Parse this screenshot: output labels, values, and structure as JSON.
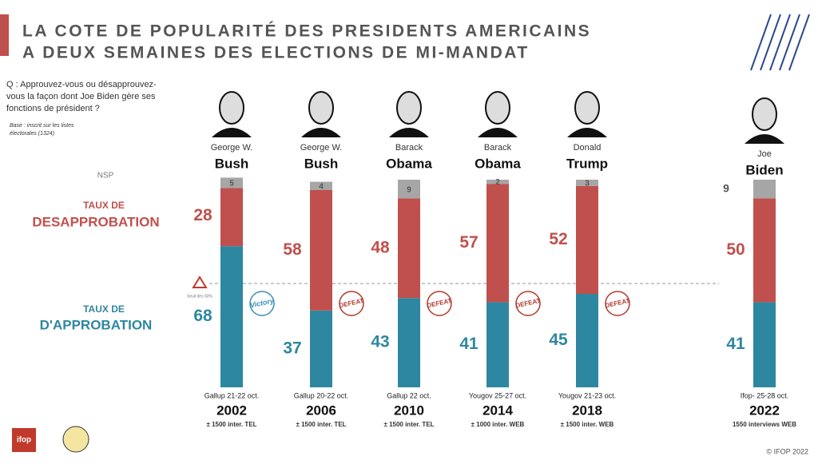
{
  "chart_data": {
    "type": "stacked-bar",
    "title": [
      "LA COTE DE POPULARITÉ DES PRESIDENTS AMERICAINS",
      "A DEUX SEMAINES DES ELECTIONS DE MI-MANDAT"
    ],
    "question": [
      "Q : Approuvez-vous ou désapprouvez-",
      "vous la façon dont Joe Biden gère ses",
      "fonctions de président ?"
    ],
    "base": [
      "Base : inscrit sur les listes",
      "électorales (1324)"
    ],
    "legend_prefix": "TAUX DE",
    "categories": [
      "2002",
      "2006",
      "2010",
      "2014",
      "2018",
      "2022"
    ],
    "presidents": [
      {
        "first": "George W.",
        "last": "Bush"
      },
      {
        "first": "George W.",
        "last": "Bush"
      },
      {
        "first": "Barack",
        "last": "Obama"
      },
      {
        "first": "Barack",
        "last": "Obama"
      },
      {
        "first": "Donald",
        "last": "Trump"
      },
      {
        "first": "Joe",
        "last": "Biden"
      }
    ],
    "sources": [
      "Gallup 21-22 oct.",
      "Gallup 20-22 oct.",
      "Gallup 22 oct.",
      "Yougov 25-27 oct.",
      "Yougov 21-23 oct.",
      "Ifop- 25-28 oct."
    ],
    "samples": [
      "± 1500 inter. TEL",
      "± 1500 inter. TEL",
      "± 1500 inter. TEL",
      "± 1000 inter. WEB",
      "± 1500 inter. WEB",
      "1550 interviews WEB"
    ],
    "outcomes": [
      "Victory",
      "DEFEAT",
      "DEFEAT",
      "DEFEAT",
      "DEFEAT",
      null
    ],
    "series": [
      {
        "name": "D'APPROBATION",
        "color": "#2e87a0",
        "values": [
          68,
          37,
          43,
          41,
          45,
          41
        ]
      },
      {
        "name": "DESAPPROBATION",
        "color": "#c0504d",
        "values": [
          28,
          58,
          48,
          57,
          52,
          50
        ]
      },
      {
        "name": "NSP",
        "color": "#a6a6a6",
        "values": [
          5,
          4,
          9,
          2,
          3,
          9
        ]
      }
    ],
    "ylim": [
      0,
      100
    ],
    "threshold": {
      "value": 50,
      "label": "Seuil des 50%"
    },
    "copyright": "© IFOP 2022",
    "logo": "ifop"
  }
}
